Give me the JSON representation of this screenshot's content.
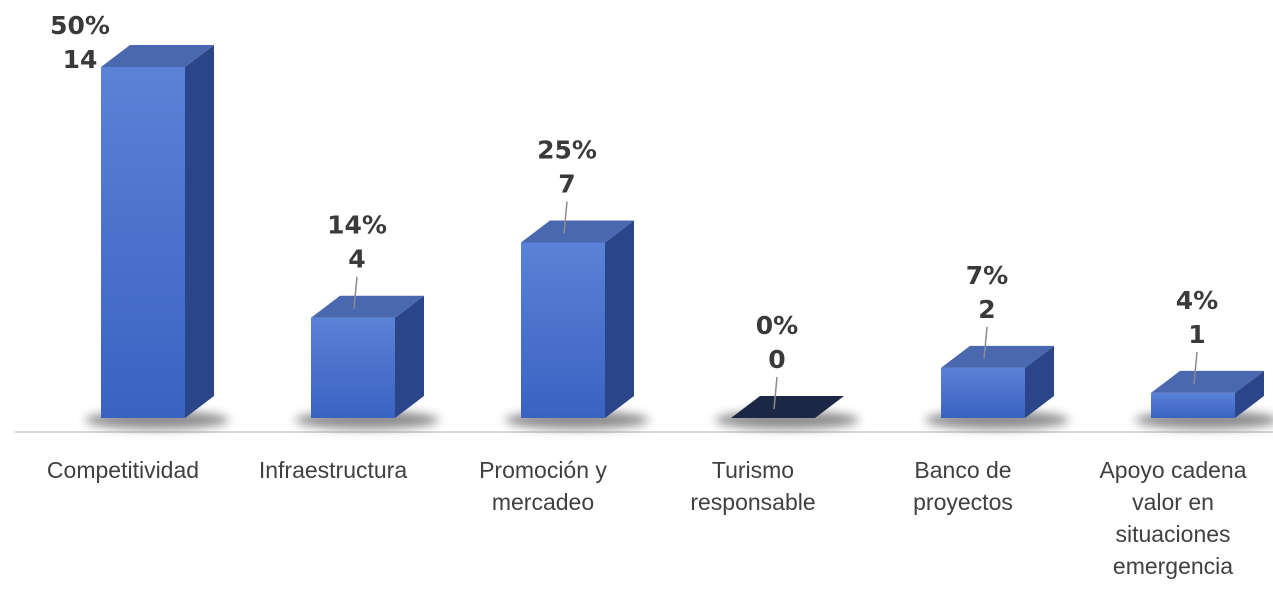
{
  "chart_data": {
    "type": "bar",
    "style": "3d-column",
    "categories": [
      [
        "Competitividad"
      ],
      [
        "Infraestructura"
      ],
      [
        "Promoción y",
        "mercadeo"
      ],
      [
        "Turismo",
        "responsable"
      ],
      [
        "Banco de",
        "proyectos"
      ],
      [
        "Apoyo cadena",
        "valor en",
        "situaciones",
        "emergencia"
      ]
    ],
    "values": [
      14,
      4,
      7,
      0,
      2,
      1
    ],
    "percent_labels": [
      "50%",
      "14%",
      "25%",
      "0%",
      "7%",
      "4%"
    ],
    "value_labels": [
      "14",
      "4",
      "7",
      "0",
      "2",
      "1"
    ],
    "ylim": [
      0,
      14
    ],
    "grid": false,
    "legend": "none",
    "colors": {
      "front_top": "#5a82d6",
      "front_bottom": "#3a62c2",
      "side": "#2a4688",
      "top": "#4a68b0",
      "zero_bar": "#1b2745",
      "axis": "#d9d9d9",
      "leader": "#8c8c8c"
    }
  }
}
